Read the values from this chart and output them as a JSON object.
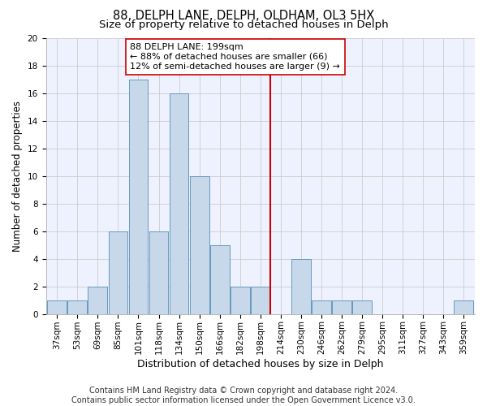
{
  "title": "88, DELPH LANE, DELPH, OLDHAM, OL3 5HX",
  "subtitle": "Size of property relative to detached houses in Delph",
  "xlabel": "Distribution of detached houses by size in Delph",
  "ylabel": "Number of detached properties",
  "categories": [
    "37sqm",
    "53sqm",
    "69sqm",
    "85sqm",
    "101sqm",
    "118sqm",
    "134sqm",
    "150sqm",
    "166sqm",
    "182sqm",
    "198sqm",
    "214sqm",
    "230sqm",
    "246sqm",
    "262sqm",
    "279sqm",
    "295sqm",
    "311sqm",
    "327sqm",
    "343sqm",
    "359sqm"
  ],
  "values": [
    1,
    1,
    2,
    6,
    17,
    6,
    16,
    10,
    5,
    2,
    2,
    0,
    4,
    1,
    1,
    1,
    0,
    0,
    0,
    0,
    1
  ],
  "bar_color": "#c8d8eb",
  "bar_edge_color": "#6699bb",
  "vline_x_index": 10.5,
  "vline_color": "#cc0000",
  "annotation_text": "88 DELPH LANE: 199sqm\n← 88% of detached houses are smaller (66)\n12% of semi-detached houses are larger (9) →",
  "annotation_box_color": "white",
  "annotation_box_edge_color": "#cc0000",
  "ylim": [
    0,
    20
  ],
  "yticks": [
    0,
    2,
    4,
    6,
    8,
    10,
    12,
    14,
    16,
    18,
    20
  ],
  "grid_color": "#cccccc",
  "background_color": "#eef2ff",
  "footer_text": "Contains HM Land Registry data © Crown copyright and database right 2024.\nContains public sector information licensed under the Open Government Licence v3.0.",
  "title_fontsize": 10.5,
  "subtitle_fontsize": 9.5,
  "xlabel_fontsize": 9,
  "ylabel_fontsize": 8.5,
  "tick_fontsize": 7.5,
  "annotation_fontsize": 8,
  "footer_fontsize": 7
}
